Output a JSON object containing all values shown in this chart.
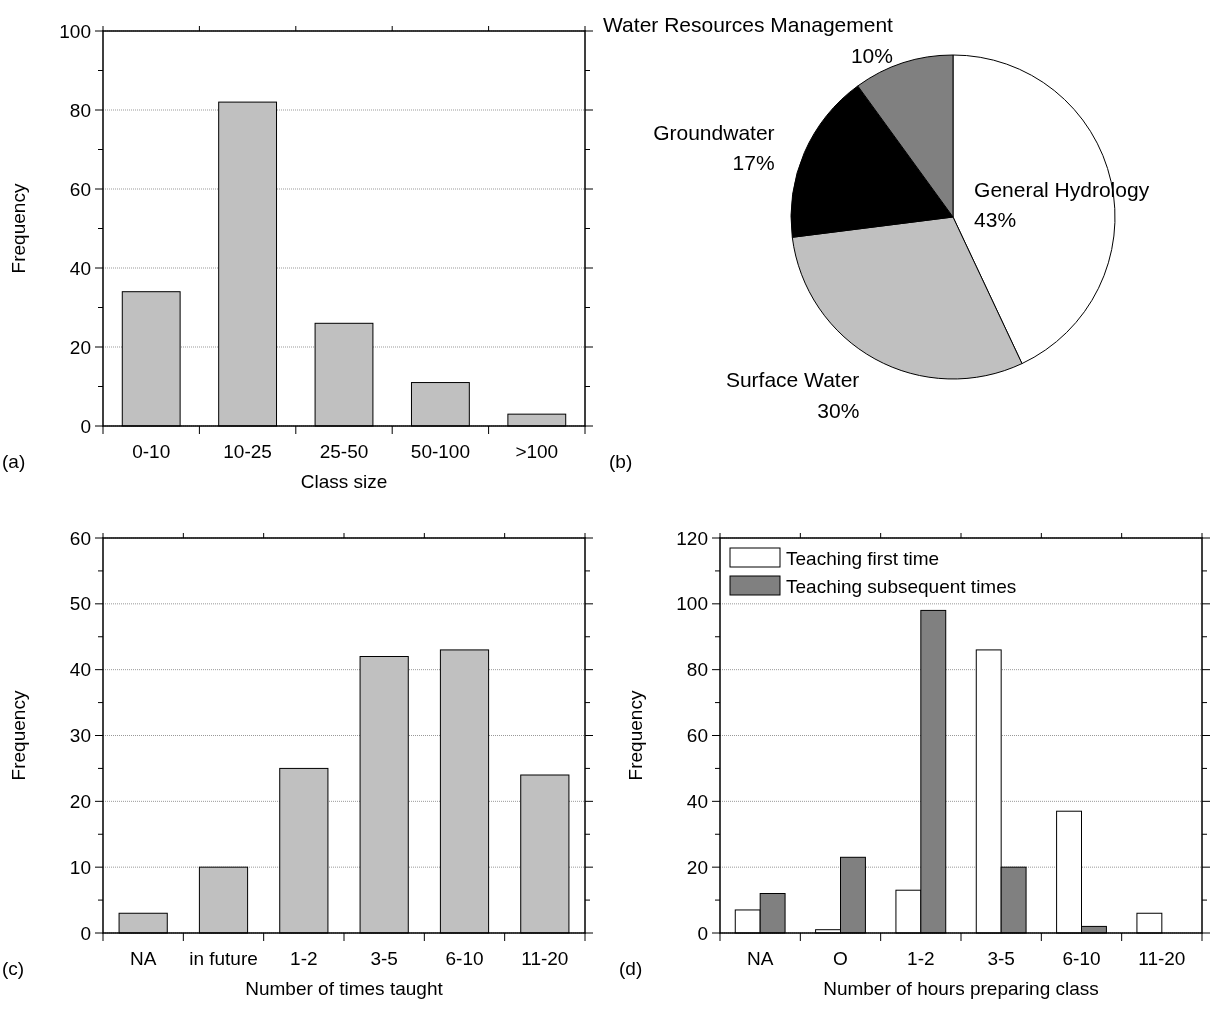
{
  "chart_data": [
    {
      "type": "bar",
      "categories": [
        "0-10",
        "10-25",
        "25-50",
        "50-100",
        ">100"
      ],
      "values": [
        34,
        82,
        26,
        11,
        3
      ],
      "color": "#c0c0c0",
      "xlabel": "Class size",
      "ylabel": "Frequency",
      "ylim": [
        0,
        100
      ],
      "yticks": [
        0,
        {
          "value": 10,
          "label": null
        },
        20,
        {
          "value": 30,
          "label": null
        },
        40,
        {
          "value": 50,
          "label": null
        },
        60,
        {
          "value": 70,
          "label": null
        },
        80,
        {
          "value": 90,
          "label": null
        },
        100
      ],
      "grid": "y",
      "legend": false,
      "annotations": [
        "(a)"
      ]
    },
    {
      "type": "pie",
      "categories": [
        "General Hydrology",
        "Surface Water",
        "Groundwater",
        "Water Resources Management"
      ],
      "values": [
        43,
        30,
        17,
        10
      ],
      "colors": [
        "#ffffff",
        "#c0c0c0",
        "#000000",
        "#808080"
      ],
      "value_labels": [
        "43%",
        "30%",
        "17%",
        "10%"
      ],
      "annotations": [
        "(b)"
      ]
    },
    {
      "type": "bar",
      "categories": [
        "NA",
        "in future",
        "1-2",
        "3-5",
        "6-10",
        "11-20"
      ],
      "values": [
        3,
        10,
        25,
        42,
        43,
        24
      ],
      "color": "#c0c0c0",
      "xlabel": "Number of times taught",
      "ylabel": "Frequency",
      "ylim": [
        0,
        60
      ],
      "yticks": [
        0,
        {
          "value": 5,
          "label": null
        },
        10,
        {
          "value": 15,
          "label": null
        },
        20,
        {
          "value": 25,
          "label": null
        },
        30,
        {
          "value": 35,
          "label": null
        },
        40,
        {
          "value": 45,
          "label": null
        },
        50,
        {
          "value": 55,
          "label": null
        },
        60
      ],
      "grid": "y",
      "legend": false,
      "annotations": [
        "(c)"
      ]
    },
    {
      "type": "bar",
      "categories": [
        "NA",
        "O",
        "1-2",
        "3-5",
        "6-10",
        "11-20"
      ],
      "series": [
        {
          "name": "Teaching first time",
          "color": "#ffffff",
          "values": [
            7,
            1,
            13,
            86,
            37,
            6
          ]
        },
        {
          "name": "Teaching subsequent times",
          "color": "#808080",
          "values": [
            12,
            23,
            98,
            20,
            2,
            null
          ]
        }
      ],
      "xlabel": "Number of hours preparing class",
      "ylabel": "Frequency",
      "ylim": [
        0,
        120
      ],
      "yticks": [
        0,
        {
          "value": 10,
          "label": null
        },
        20,
        {
          "value": 30,
          "label": null
        },
        40,
        {
          "value": 50,
          "label": null
        },
        60,
        {
          "value": 70,
          "label": null
        },
        80,
        {
          "value": 90,
          "label": null
        },
        100,
        {
          "value": 110,
          "label": null
        },
        120
      ],
      "grid": "y",
      "legend": "top left",
      "annotations": [
        "(d)"
      ]
    }
  ]
}
